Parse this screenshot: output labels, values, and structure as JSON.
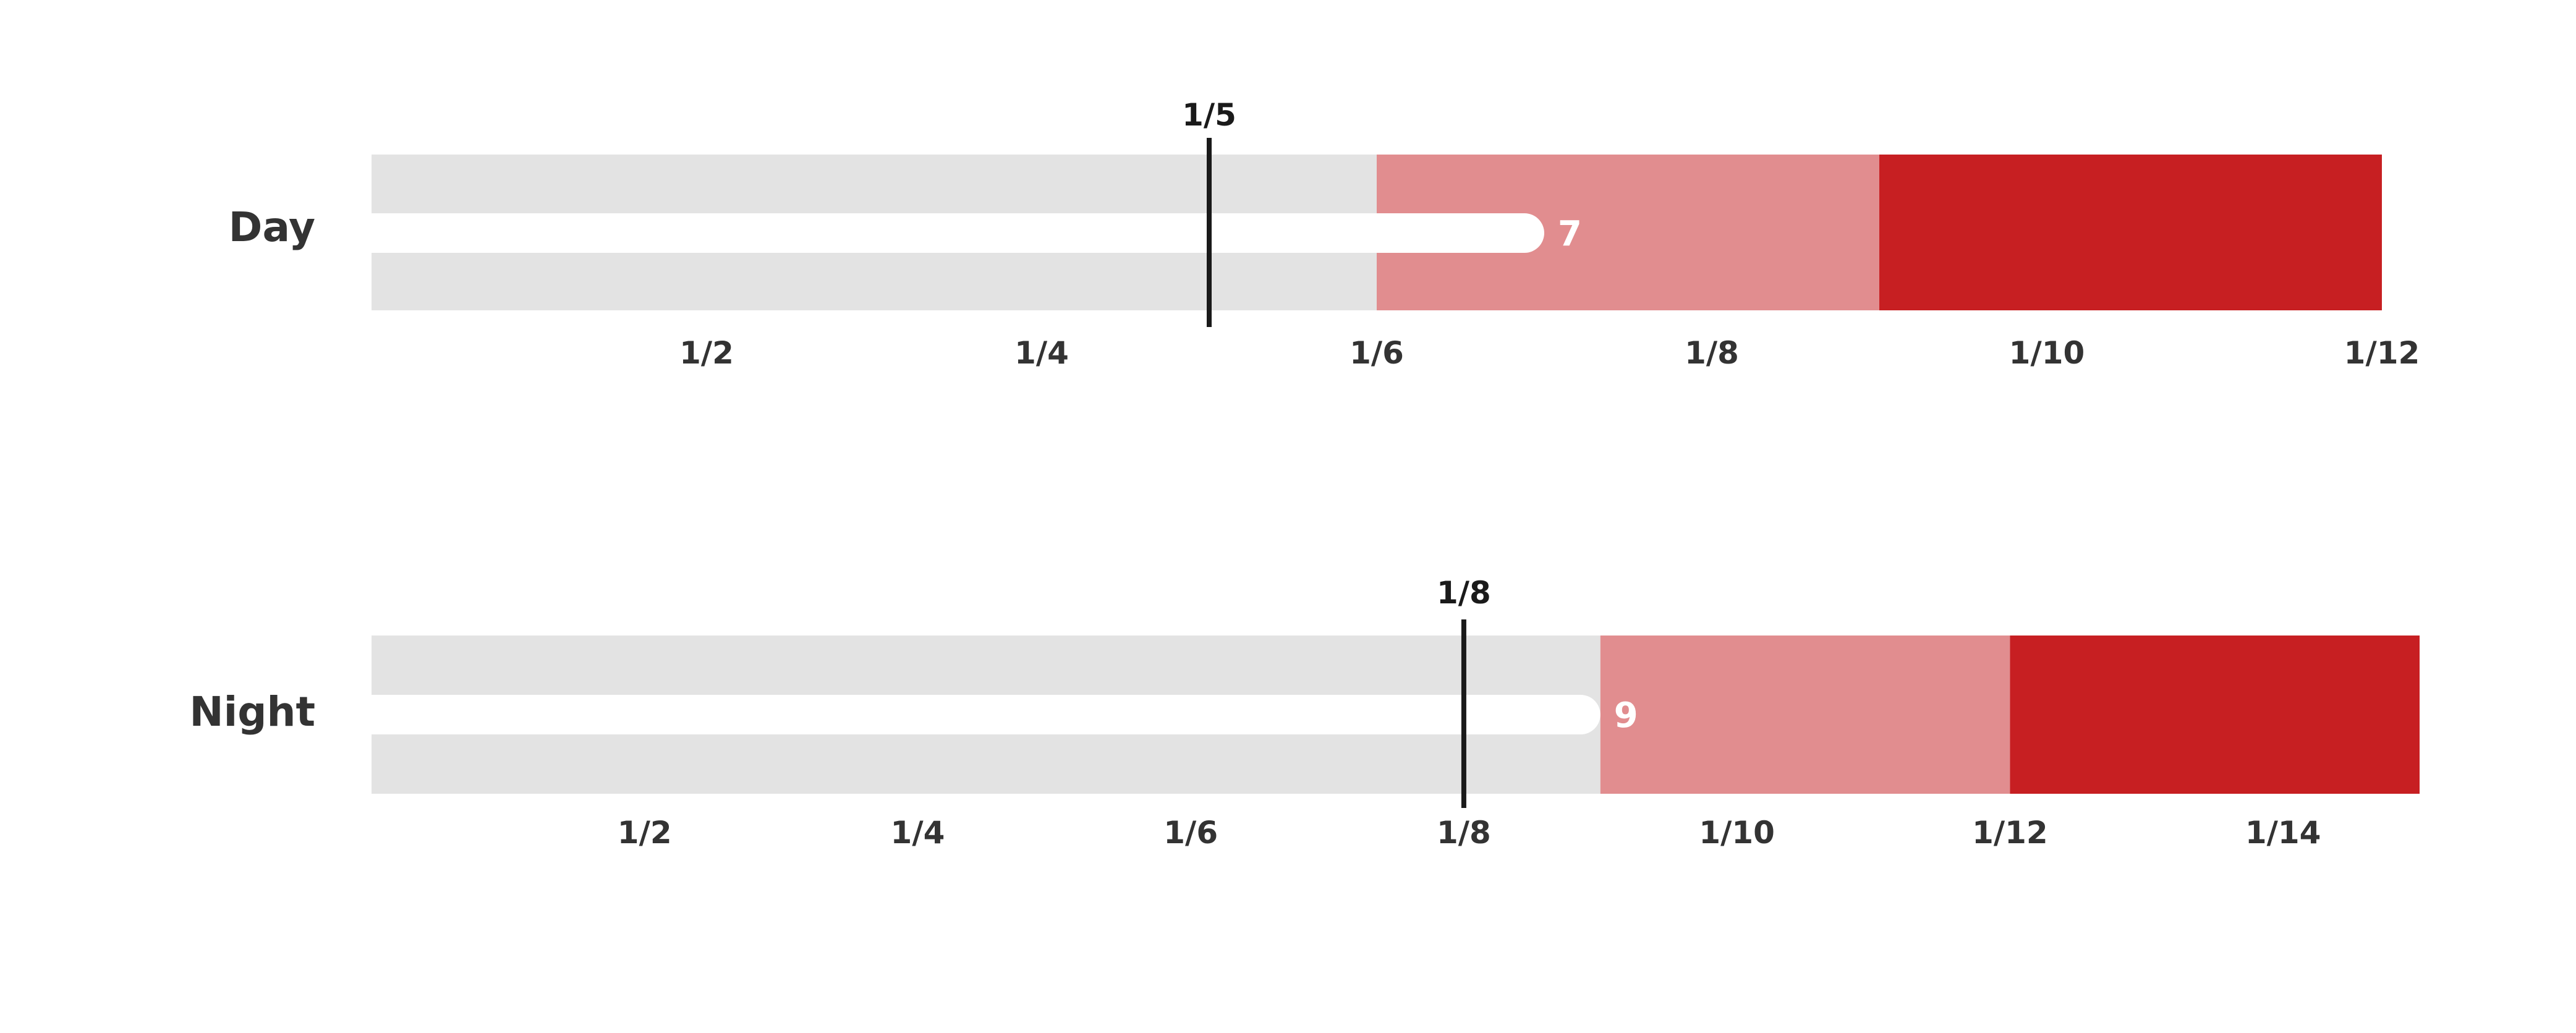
{
  "chart_data": {
    "type": "bullet",
    "colors": {
      "range_low": "#e3e3e3",
      "range_mid": "#e18d8f",
      "range_high": "#c71f22",
      "measure": "#ffffff",
      "marker": "#1a1a1a"
    },
    "series": [
      {
        "name": "Day",
        "ranges": [
          6,
          9,
          12
        ],
        "measure": 7,
        "measure_label": "7",
        "marker": 5,
        "marker_label": "1/5",
        "xlim": [
          0,
          12
        ],
        "ticks": [
          2,
          4,
          6,
          8,
          10,
          12
        ],
        "tick_labels": [
          "1/2",
          "1/4",
          "1/6",
          "1/8",
          "1/10",
          "1/12"
        ]
      },
      {
        "name": "Night",
        "ranges": [
          9,
          12,
          15
        ],
        "measure": 9,
        "measure_label": "9",
        "marker": 8,
        "marker_label": "1/8",
        "xlim": [
          0,
          15
        ],
        "ticks": [
          2,
          4,
          6,
          8,
          10,
          12,
          14
        ],
        "tick_labels": [
          "1/2",
          "1/4",
          "1/6",
          "1/8",
          "1/10",
          "1/12",
          "1/14"
        ]
      }
    ]
  }
}
